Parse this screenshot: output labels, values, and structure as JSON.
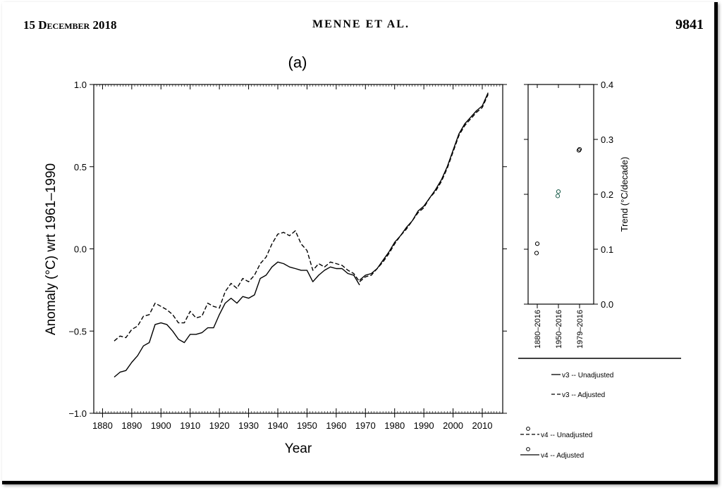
{
  "header": {
    "date": "15 December 2018",
    "authors": "MENNE ET AL.",
    "page_number": "9841"
  },
  "chart_data": [
    {
      "type": "line",
      "panel_label": "(a)",
      "xlabel": "Year",
      "ylabel": "Anomaly (°C) wrt 1961–1990",
      "xlim": [
        1877,
        2017
      ],
      "ylim": [
        -1.0,
        1.0
      ],
      "x_ticks": [
        "1880",
        "1890",
        "1900",
        "1910",
        "1920",
        "1930",
        "1940",
        "1950",
        "1960",
        "1970",
        "1980",
        "1990",
        "2000",
        "2010"
      ],
      "y_ticks": [
        "1.0",
        "0.5",
        "0.0",
        "−0.5",
        "−1.0"
      ],
      "series": [
        {
          "name": "v4 -- Unadjusted",
          "style": "dashed",
          "x": [
            1884,
            1886,
            1888,
            1890,
            1892,
            1894,
            1896,
            1898,
            1900,
            1902,
            1904,
            1906,
            1908,
            1910,
            1912,
            1914,
            1916,
            1918,
            1920,
            1922,
            1924,
            1926,
            1928,
            1930,
            1932,
            1934,
            1936,
            1938,
            1940,
            1942,
            1944,
            1946,
            1948,
            1950,
            1952,
            1954,
            1956,
            1958,
            1960,
            1962,
            1964,
            1966,
            1968
          ],
          "values": [
            -0.56,
            -0.53,
            -0.54,
            -0.49,
            -0.47,
            -0.41,
            -0.4,
            -0.33,
            -0.35,
            -0.37,
            -0.4,
            -0.45,
            -0.45,
            -0.38,
            -0.42,
            -0.41,
            -0.33,
            -0.35,
            -0.36,
            -0.26,
            -0.21,
            -0.24,
            -0.18,
            -0.2,
            -0.16,
            -0.09,
            -0.05,
            0.03,
            0.09,
            0.1,
            0.08,
            0.11,
            0.03,
            -0.01,
            -0.13,
            -0.09,
            -0.11,
            -0.08,
            -0.09,
            -0.1,
            -0.13,
            -0.15,
            -0.2
          ]
        },
        {
          "name": "v4 -- Adjusted",
          "style": "solid",
          "x": [
            1884,
            1886,
            1888,
            1890,
            1892,
            1894,
            1896,
            1898,
            1900,
            1902,
            1904,
            1906,
            1908,
            1910,
            1912,
            1914,
            1916,
            1918,
            1920,
            1922,
            1924,
            1926,
            1928,
            1930,
            1932,
            1934,
            1936,
            1938,
            1940,
            1942,
            1944,
            1946,
            1948,
            1950,
            1952,
            1954,
            1956,
            1958,
            1960,
            1962,
            1964,
            1966,
            1968
          ],
          "values": [
            -0.78,
            -0.75,
            -0.74,
            -0.69,
            -0.65,
            -0.59,
            -0.57,
            -0.46,
            -0.45,
            -0.46,
            -0.5,
            -0.55,
            -0.57,
            -0.52,
            -0.52,
            -0.51,
            -0.48,
            -0.48,
            -0.4,
            -0.33,
            -0.3,
            -0.33,
            -0.29,
            -0.3,
            -0.28,
            -0.18,
            -0.16,
            -0.11,
            -0.08,
            -0.09,
            -0.11,
            -0.12,
            -0.13,
            -0.13,
            -0.2,
            -0.16,
            -0.13,
            -0.11,
            -0.12,
            -0.12,
            -0.15,
            -0.16,
            -0.22
          ]
        },
        {
          "name": "v3 -- Unadjusted",
          "style": "solid",
          "x": [
            1968,
            1970,
            1972,
            1974,
            1976,
            1978,
            1980,
            1982,
            1984,
            1986,
            1988,
            1990,
            1992,
            1994,
            1996,
            1998,
            2000,
            2002,
            2004,
            2006,
            2008,
            2010,
            2012
          ],
          "values": [
            -0.19,
            -0.16,
            -0.15,
            -0.12,
            -0.07,
            -0.02,
            0.04,
            0.08,
            0.13,
            0.17,
            0.23,
            0.26,
            0.31,
            0.36,
            0.42,
            0.5,
            0.6,
            0.7,
            0.76,
            0.8,
            0.84,
            0.87,
            0.95
          ]
        },
        {
          "name": "v3 -- Adjusted",
          "style": "dashed",
          "x": [
            1968,
            1970,
            1972,
            1974,
            1976,
            1978,
            1980,
            1982,
            1984,
            1986,
            1988,
            1990,
            1992,
            1994,
            1996,
            1998,
            2000,
            2002,
            2004,
            2006,
            2008,
            2010,
            2012
          ],
          "values": [
            -0.2,
            -0.17,
            -0.16,
            -0.12,
            -0.08,
            -0.03,
            0.03,
            0.08,
            0.12,
            0.17,
            0.22,
            0.25,
            0.31,
            0.35,
            0.41,
            0.49,
            0.59,
            0.69,
            0.75,
            0.79,
            0.83,
            0.86,
            0.94
          ]
        }
      ]
    },
    {
      "type": "scatter",
      "ylabel": "Trend (°C/decade)",
      "ylim": [
        0.0,
        0.4
      ],
      "y_ticks": [
        "0.4",
        "0.3",
        "0.2",
        "0.1",
        "0.0"
      ],
      "categories": [
        "1880–2016",
        "1950–2016",
        "1979–2016"
      ],
      "points": [
        {
          "category": "1880–2016",
          "values": [
            0.11,
            0.093
          ],
          "color": "#000000"
        },
        {
          "category": "1950–2016",
          "values": [
            0.205,
            0.197
          ],
          "color": "#1a5c4a"
        },
        {
          "category": "1979–2016",
          "values": [
            0.282,
            0.28
          ],
          "color": "#000000"
        }
      ]
    }
  ],
  "legend": {
    "items": [
      {
        "label": "v3 -- Unadjusted",
        "symbol": "solid"
      },
      {
        "label": "v3 -- Adjusted",
        "symbol": "dashed"
      },
      {
        "label": "v4 -- Unadjusted",
        "symbol": "dashed"
      },
      {
        "label": "v4 -- Adjusted",
        "symbol": "solid"
      }
    ]
  }
}
